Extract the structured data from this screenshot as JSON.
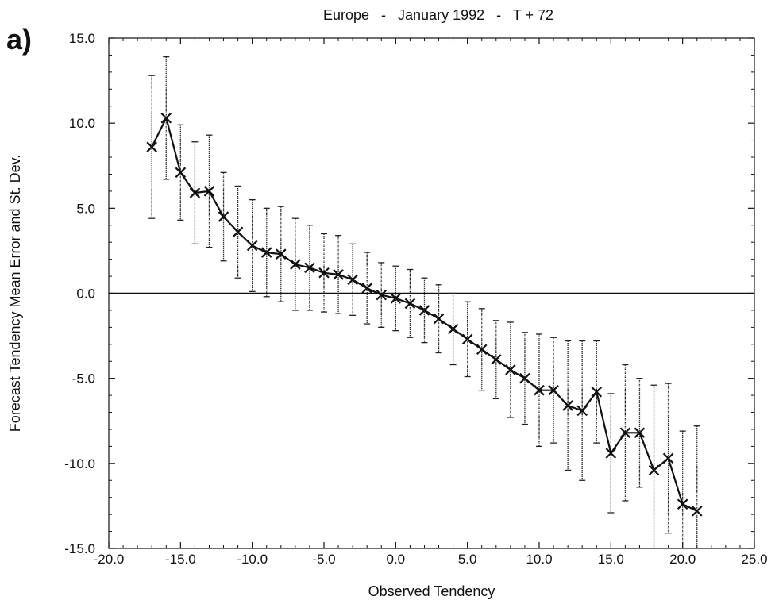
{
  "chart_data": {
    "type": "line",
    "panel_label": "a)",
    "title": "Europe   -   January 1992   -   T + 72",
    "xlabel": "Observed Tendency",
    "ylabel": "Forecast Tendency Mean Error and St. Dev.",
    "xlim": [
      -20,
      25
    ],
    "ylim": [
      -15,
      15
    ],
    "xticks": [
      -20,
      -15,
      -10,
      -5,
      0,
      5,
      10,
      15,
      20,
      25
    ],
    "xtick_labels": [
      "-20.0",
      "-15.0",
      "-10.0",
      "-5.0",
      "0.0",
      "5.0",
      "10.0",
      "15.0",
      "20.0",
      "25.0"
    ],
    "yticks": [
      -15,
      -10,
      -5,
      0,
      5,
      10,
      15
    ],
    "ytick_labels": [
      "-15.0",
      "-10.0",
      "-5.0",
      "0.0",
      "5.0",
      "10.0",
      "15.0"
    ],
    "zero_line": true,
    "grid": false,
    "series": [
      {
        "marker": "x",
        "error_bars": "std_dev",
        "x": [
          -17,
          -16,
          -15,
          -14,
          -13,
          -12,
          -11,
          -10,
          -9,
          -8,
          -7,
          -6,
          -5,
          -4,
          -3,
          -2,
          -1,
          0,
          1,
          2,
          3,
          4,
          5,
          6,
          7,
          8,
          9,
          10,
          11,
          12,
          13,
          14,
          15,
          16,
          17,
          18,
          19,
          20,
          21
        ],
        "y": [
          8.6,
          10.3,
          7.1,
          5.9,
          6.0,
          4.5,
          3.6,
          2.8,
          2.4,
          2.3,
          1.7,
          1.5,
          1.2,
          1.1,
          0.8,
          0.3,
          -0.1,
          -0.3,
          -0.6,
          -1.0,
          -1.5,
          -2.1,
          -2.7,
          -3.3,
          -3.9,
          -4.5,
          -5.0,
          -5.7,
          -5.7,
          -6.6,
          -6.9,
          -5.8,
          -9.4,
          -8.2,
          -8.2,
          -10.4,
          -9.7,
          -12.4,
          -12.8
        ],
        "err": [
          4.2,
          3.6,
          2.8,
          3.0,
          3.3,
          2.6,
          2.7,
          2.7,
          2.6,
          2.8,
          2.7,
          2.5,
          2.3,
          2.3,
          2.1,
          2.1,
          1.9,
          1.9,
          2.0,
          1.9,
          2.0,
          2.1,
          2.2,
          2.4,
          2.3,
          2.8,
          2.7,
          3.3,
          3.1,
          3.8,
          4.1,
          3.0,
          3.5,
          4.0,
          3.2,
          5.0,
          4.4,
          4.3,
          5.0
        ]
      }
    ]
  }
}
